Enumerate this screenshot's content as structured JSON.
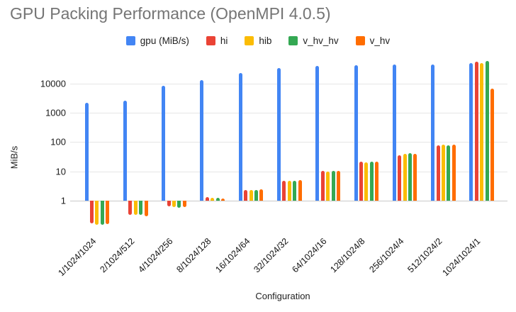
{
  "chart_data": {
    "type": "bar",
    "title": "GPU Packing Performance (OpenMPI 4.0.5)",
    "xlabel": "Configuration",
    "ylabel": "MiB/s",
    "y_scale": "log",
    "y_ticks": [
      1,
      10,
      100,
      1000,
      10000
    ],
    "ylim": [
      0.1,
      100000
    ],
    "grid": "horizontal-only",
    "legend_position": "top-center",
    "categories": [
      "1/1024/1024",
      "2/1024/512",
      "4/1024/256",
      "8/1024/128",
      "16/1024/64",
      "32/1024/32",
      "64/1024/16",
      "128/1024/8",
      "256/1024/4",
      "512/1024/2",
      "1024/1024/1"
    ],
    "series": [
      {
        "name": "gpu (MiB/s)",
        "color": "#4285F4",
        "values": [
          2150,
          2550,
          8300,
          13000,
          22500,
          33500,
          40500,
          42000,
          45500,
          44000,
          50500
        ]
      },
      {
        "name": "hi",
        "color": "#EA4335",
        "values": [
          0.17,
          0.32,
          0.63,
          1.3,
          2.3,
          4.9,
          10.2,
          21,
          36,
          76,
          55500
        ]
      },
      {
        "name": "hib",
        "color": "#FBBC04",
        "values": [
          0.15,
          0.33,
          0.6,
          1.28,
          2.3,
          4.9,
          10,
          20,
          40,
          82,
          51000
        ]
      },
      {
        "name": "v_hv_hv",
        "color": "#34A853",
        "values": [
          0.15,
          0.32,
          0.57,
          1.22,
          2.3,
          4.9,
          10.2,
          21.5,
          41,
          79,
          57500
        ]
      },
      {
        "name": "v_hv",
        "color": "#FF6D01",
        "values": [
          0.16,
          0.29,
          0.6,
          1.2,
          2.4,
          5.0,
          10.5,
          21,
          40,
          82,
          6600
        ]
      }
    ],
    "colors": {
      "title_text": "#757575",
      "axis_text": "#222222",
      "tick_text": "#1a1a1a",
      "gridline": "#e6e6e6",
      "baseline": "#c8c8c8",
      "background": "#ffffff"
    }
  }
}
